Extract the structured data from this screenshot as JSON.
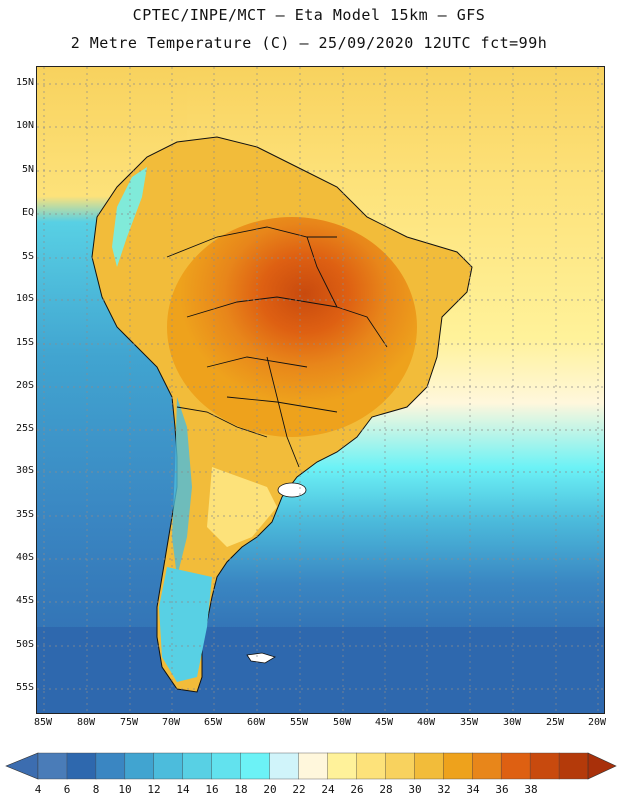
{
  "header": {
    "line1": "CPTEC/INPE/MCT –  Eta Model 15km – GFS",
    "line2": "2 Metre Temperature (C) – 25/09/2020 12UTC fct=99h"
  },
  "map": {
    "variable": "2 Metre Temperature",
    "units": "C",
    "lat_labels": [
      "15N",
      "10N",
      "5N",
      "EQ",
      "5S",
      "10S",
      "15S",
      "20S",
      "25S",
      "30S",
      "35S",
      "40S",
      "45S",
      "50S",
      "55S"
    ],
    "lon_labels": [
      "85W",
      "80W",
      "75W",
      "70W",
      "65W",
      "60W",
      "55W",
      "50W",
      "45W",
      "40W",
      "35W",
      "30W",
      "25W",
      "20W"
    ]
  },
  "colorbar": {
    "labels": [
      "4",
      "6",
      "8",
      "10",
      "12",
      "14",
      "16",
      "18",
      "20",
      "22",
      "24",
      "26",
      "28",
      "30",
      "32",
      "34",
      "36",
      "38"
    ],
    "colors": [
      "#4a7cb8",
      "#2e68ae",
      "#3a86c2",
      "#41a4d0",
      "#4cbcdc",
      "#58d0e4",
      "#62e2ee",
      "#6cf2f6",
      "#d0f4fa",
      "#fff7dc",
      "#fff29a",
      "#fde27a",
      "#f8d25e",
      "#f2bc3a",
      "#eea21c",
      "#e8861a",
      "#de6012",
      "#c84a0e",
      "#b43a0a"
    ],
    "low_color": "#3c6db0",
    "high_color": "#a8300a"
  }
}
